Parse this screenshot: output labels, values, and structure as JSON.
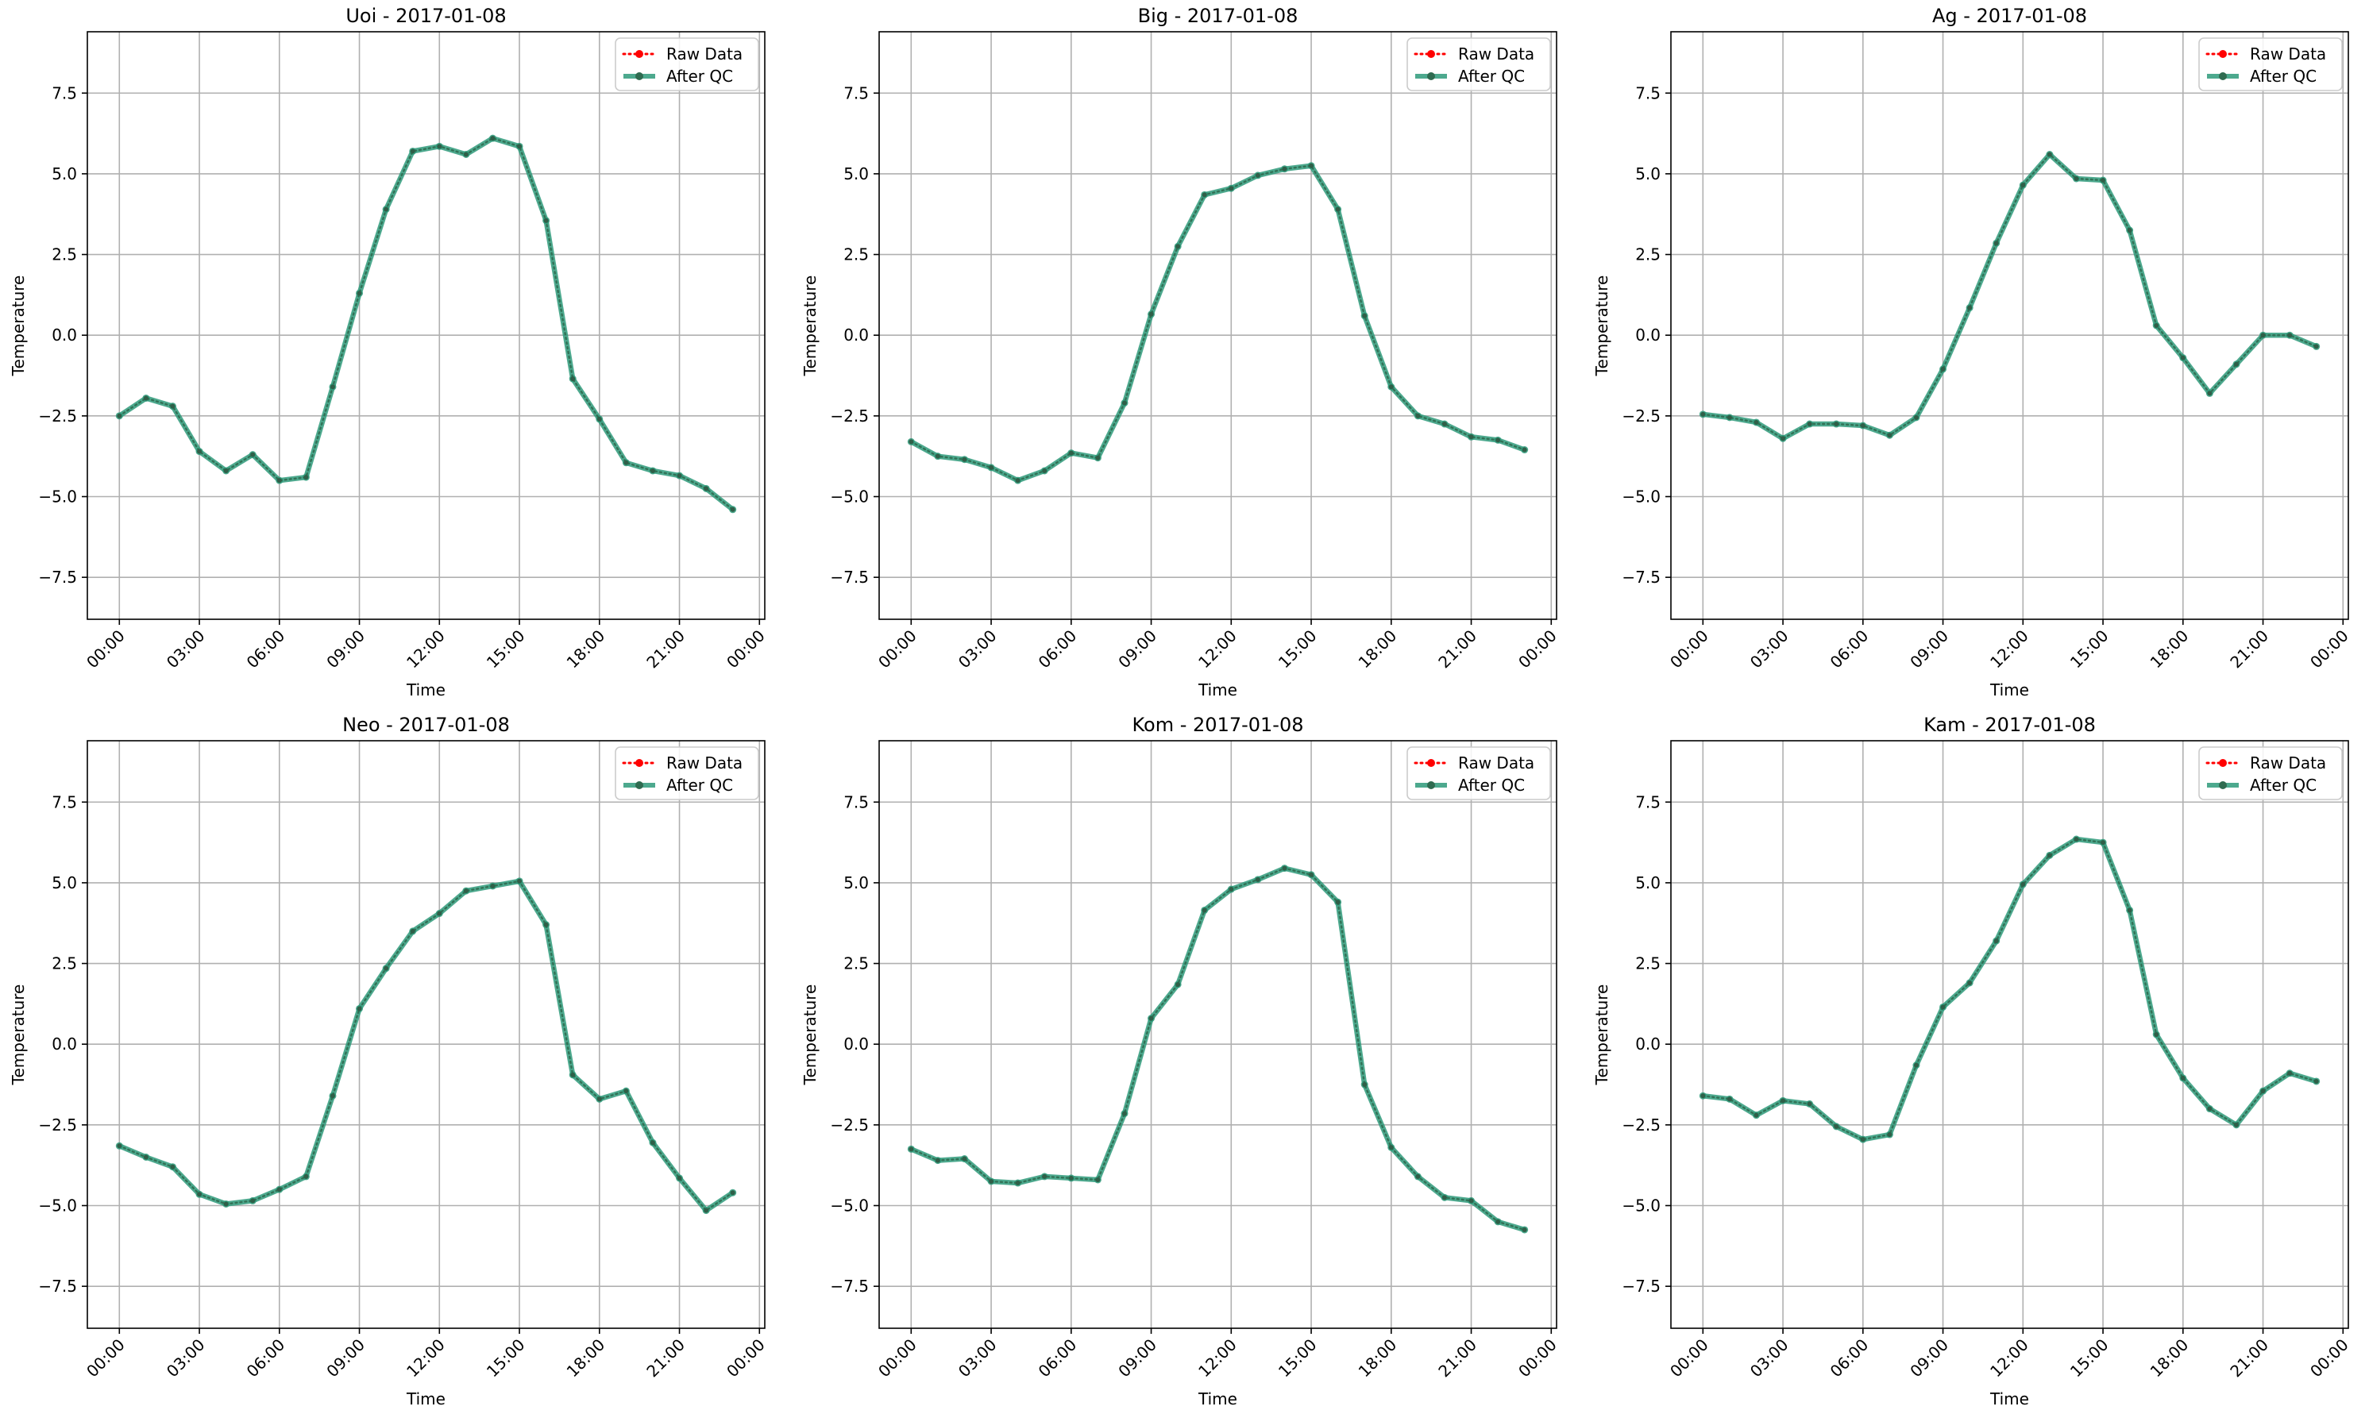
{
  "chart_data": [
    {
      "type": "line",
      "title": "Uoi - 2017-01-08",
      "xlabel": "Time",
      "ylabel": "Temperature",
      "xtick_labels": [
        "00:00",
        "03:00",
        "06:00",
        "09:00",
        "12:00",
        "15:00",
        "18:00",
        "21:00",
        "00:00"
      ],
      "ytick_labels": [
        "−7.5",
        "−5.0",
        "−2.5",
        "0.0",
        "2.5",
        "5.0",
        "7.5"
      ],
      "ylim": [
        -8.8,
        9.4
      ],
      "xlim": [
        "2017-01-07 22:48",
        "2017-01-09 00:12"
      ],
      "grid": true,
      "legend": {
        "position": "top-right",
        "entries": [
          "Raw Data",
          "After QC"
        ]
      },
      "x": [
        "00:00",
        "01:00",
        "02:00",
        "03:00",
        "04:00",
        "05:00",
        "06:00",
        "07:00",
        "08:00",
        "09:00",
        "10:00",
        "11:00",
        "12:00",
        "13:00",
        "14:00",
        "15:00",
        "16:00",
        "17:00",
        "18:00",
        "19:00",
        "20:00",
        "21:00",
        "22:00",
        "23:00"
      ],
      "series": [
        {
          "name": "Raw Data",
          "color": "#ff0000",
          "style": "dotted",
          "values": [
            -2.5,
            -1.95,
            -2.2,
            -3.6,
            -4.2,
            -3.7,
            -4.5,
            -4.4,
            -1.6,
            1.3,
            3.9,
            5.7,
            5.85,
            5.6,
            6.1,
            5.85,
            3.55,
            -1.35,
            -2.6,
            -3.95,
            -4.2,
            -4.35,
            -4.75,
            -5.4
          ]
        },
        {
          "name": "After QC",
          "color": "#2e9a7a",
          "style": "solid",
          "values": [
            -2.5,
            -1.95,
            -2.2,
            -3.6,
            -4.2,
            -3.7,
            -4.5,
            -4.4,
            -1.6,
            1.3,
            3.9,
            5.7,
            5.85,
            5.6,
            6.1,
            5.85,
            3.55,
            -1.35,
            -2.6,
            -3.95,
            -4.2,
            -4.35,
            -4.75,
            -5.4
          ]
        }
      ]
    },
    {
      "type": "line",
      "title": "Big - 2017-01-08",
      "xlabel": "Time",
      "ylabel": "Temperature",
      "xtick_labels": [
        "00:00",
        "03:00",
        "06:00",
        "09:00",
        "12:00",
        "15:00",
        "18:00",
        "21:00",
        "00:00"
      ],
      "ytick_labels": [
        "−7.5",
        "−5.0",
        "−2.5",
        "0.0",
        "2.5",
        "5.0",
        "7.5"
      ],
      "ylim": [
        -8.8,
        9.4
      ],
      "xlim": [
        "2017-01-07 22:48",
        "2017-01-09 00:12"
      ],
      "grid": true,
      "legend": {
        "position": "top-right",
        "entries": [
          "Raw Data",
          "After QC"
        ]
      },
      "x": [
        "00:00",
        "01:00",
        "02:00",
        "03:00",
        "04:00",
        "05:00",
        "06:00",
        "07:00",
        "08:00",
        "09:00",
        "10:00",
        "11:00",
        "12:00",
        "13:00",
        "14:00",
        "15:00",
        "16:00",
        "17:00",
        "18:00",
        "19:00",
        "20:00",
        "21:00",
        "22:00",
        "23:00"
      ],
      "series": [
        {
          "name": "Raw Data",
          "color": "#ff0000",
          "style": "dotted",
          "values": [
            -3.3,
            -3.75,
            -3.85,
            -4.1,
            -4.5,
            -4.2,
            -3.65,
            -3.8,
            -2.1,
            0.65,
            2.75,
            4.35,
            4.55,
            4.95,
            5.15,
            5.25,
            3.9,
            0.6,
            -1.6,
            -2.5,
            -2.75,
            -3.15,
            -3.25,
            -3.55
          ]
        },
        {
          "name": "After QC",
          "color": "#2e9a7a",
          "style": "solid",
          "values": [
            -3.3,
            -3.75,
            -3.85,
            -4.1,
            -4.5,
            -4.2,
            -3.65,
            -3.8,
            -2.1,
            0.65,
            2.75,
            4.35,
            4.55,
            4.95,
            5.15,
            5.25,
            3.9,
            0.6,
            -1.6,
            -2.5,
            -2.75,
            -3.15,
            -3.25,
            -3.55
          ]
        }
      ]
    },
    {
      "type": "line",
      "title": "Ag - 2017-01-08",
      "xlabel": "Time",
      "ylabel": "Temperature",
      "xtick_labels": [
        "00:00",
        "03:00",
        "06:00",
        "09:00",
        "12:00",
        "15:00",
        "18:00",
        "21:00",
        "00:00"
      ],
      "ytick_labels": [
        "−7.5",
        "−5.0",
        "−2.5",
        "0.0",
        "2.5",
        "5.0",
        "7.5"
      ],
      "ylim": [
        -8.8,
        9.4
      ],
      "xlim": [
        "2017-01-07 22:48",
        "2017-01-09 00:12"
      ],
      "grid": true,
      "legend": {
        "position": "top-right",
        "entries": [
          "Raw Data",
          "After QC"
        ]
      },
      "x": [
        "00:00",
        "01:00",
        "02:00",
        "03:00",
        "04:00",
        "05:00",
        "06:00",
        "07:00",
        "08:00",
        "09:00",
        "10:00",
        "11:00",
        "12:00",
        "13:00",
        "14:00",
        "15:00",
        "16:00",
        "17:00",
        "18:00",
        "19:00",
        "20:00",
        "21:00",
        "22:00",
        "23:00"
      ],
      "series": [
        {
          "name": "Raw Data",
          "color": "#ff0000",
          "style": "dotted",
          "values": [
            -2.45,
            -2.55,
            -2.7,
            -3.2,
            -2.75,
            -2.75,
            -2.8,
            -3.1,
            -2.55,
            -1.05,
            0.85,
            2.85,
            4.65,
            5.6,
            4.85,
            4.8,
            3.25,
            0.3,
            -0.7,
            -1.8,
            -0.9,
            0.0,
            0.0,
            -0.35
          ]
        },
        {
          "name": "After QC",
          "color": "#2e9a7a",
          "style": "solid",
          "values": [
            -2.45,
            -2.55,
            -2.7,
            -3.2,
            -2.75,
            -2.75,
            -2.8,
            -3.1,
            -2.55,
            -1.05,
            0.85,
            2.85,
            4.65,
            5.6,
            4.85,
            4.8,
            3.25,
            0.3,
            -0.7,
            -1.8,
            -0.9,
            0.0,
            0.0,
            -0.35
          ]
        }
      ]
    },
    {
      "type": "line",
      "title": "Neo - 2017-01-08",
      "xlabel": "Time",
      "ylabel": "Temperature",
      "xtick_labels": [
        "00:00",
        "03:00",
        "06:00",
        "09:00",
        "12:00",
        "15:00",
        "18:00",
        "21:00",
        "00:00"
      ],
      "ytick_labels": [
        "−7.5",
        "−5.0",
        "−2.5",
        "0.0",
        "2.5",
        "5.0",
        "7.5"
      ],
      "ylim": [
        -8.8,
        9.4
      ],
      "xlim": [
        "2017-01-07 22:48",
        "2017-01-09 00:12"
      ],
      "grid": true,
      "legend": {
        "position": "top-right",
        "entries": [
          "Raw Data",
          "After QC"
        ]
      },
      "x": [
        "00:00",
        "01:00",
        "02:00",
        "03:00",
        "04:00",
        "05:00",
        "06:00",
        "07:00",
        "08:00",
        "09:00",
        "10:00",
        "11:00",
        "12:00",
        "13:00",
        "14:00",
        "15:00",
        "16:00",
        "17:00",
        "18:00",
        "19:00",
        "20:00",
        "21:00",
        "22:00",
        "23:00"
      ],
      "series": [
        {
          "name": "Raw Data",
          "color": "#ff0000",
          "style": "dotted",
          "values": [
            -3.15,
            -3.5,
            -3.8,
            -4.65,
            -4.95,
            -4.85,
            -4.5,
            -4.1,
            -1.6,
            1.1,
            2.35,
            3.5,
            4.05,
            4.75,
            4.9,
            5.05,
            3.7,
            -0.95,
            -1.7,
            -1.45,
            -3.05,
            -4.15,
            -5.15,
            -4.6
          ]
        },
        {
          "name": "After QC",
          "color": "#2e9a7a",
          "style": "solid",
          "values": [
            -3.15,
            -3.5,
            -3.8,
            -4.65,
            -4.95,
            -4.85,
            -4.5,
            -4.1,
            -1.6,
            1.1,
            2.35,
            3.5,
            4.05,
            4.75,
            4.9,
            5.05,
            3.7,
            -0.95,
            -1.7,
            -1.45,
            -3.05,
            -4.15,
            -5.15,
            -4.6
          ]
        }
      ]
    },
    {
      "type": "line",
      "title": "Kom - 2017-01-08",
      "xlabel": "Time",
      "ylabel": "Temperature",
      "xtick_labels": [
        "00:00",
        "03:00",
        "06:00",
        "09:00",
        "12:00",
        "15:00",
        "18:00",
        "21:00",
        "00:00"
      ],
      "ytick_labels": [
        "−7.5",
        "−5.0",
        "−2.5",
        "0.0",
        "2.5",
        "5.0",
        "7.5"
      ],
      "ylim": [
        -8.8,
        9.4
      ],
      "xlim": [
        "2017-01-07 22:48",
        "2017-01-09 00:12"
      ],
      "grid": true,
      "legend": {
        "position": "top-right",
        "entries": [
          "Raw Data",
          "After QC"
        ]
      },
      "x": [
        "00:00",
        "01:00",
        "02:00",
        "03:00",
        "04:00",
        "05:00",
        "06:00",
        "07:00",
        "08:00",
        "09:00",
        "10:00",
        "11:00",
        "12:00",
        "13:00",
        "14:00",
        "15:00",
        "16:00",
        "17:00",
        "18:00",
        "19:00",
        "20:00",
        "21:00",
        "22:00",
        "23:00"
      ],
      "series": [
        {
          "name": "Raw Data",
          "color": "#ff0000",
          "style": "dotted",
          "values": [
            -3.25,
            -3.6,
            -3.55,
            -4.25,
            -4.3,
            -4.1,
            -4.15,
            -4.2,
            -2.15,
            0.8,
            1.85,
            4.15,
            4.8,
            5.1,
            5.45,
            5.25,
            4.4,
            -1.25,
            -3.2,
            -4.1,
            -4.75,
            -4.85,
            -5.5,
            -5.75
          ]
        },
        {
          "name": "After QC",
          "color": "#2e9a7a",
          "style": "solid",
          "values": [
            -3.25,
            -3.6,
            -3.55,
            -4.25,
            -4.3,
            -4.1,
            -4.15,
            -4.2,
            -2.15,
            0.8,
            1.85,
            4.15,
            4.8,
            5.1,
            5.45,
            5.25,
            4.4,
            -1.25,
            -3.2,
            -4.1,
            -4.75,
            -4.85,
            -5.5,
            -5.75
          ]
        }
      ]
    },
    {
      "type": "line",
      "title": "Kam - 2017-01-08",
      "xlabel": "Time",
      "ylabel": "Temperature",
      "xtick_labels": [
        "00:00",
        "03:00",
        "06:00",
        "09:00",
        "12:00",
        "15:00",
        "18:00",
        "21:00",
        "00:00"
      ],
      "ytick_labels": [
        "−7.5",
        "−5.0",
        "−2.5",
        "0.0",
        "2.5",
        "5.0",
        "7.5"
      ],
      "ylim": [
        -8.8,
        9.4
      ],
      "xlim": [
        "2017-01-07 22:48",
        "2017-01-09 00:12"
      ],
      "grid": true,
      "legend": {
        "position": "top-right",
        "entries": [
          "Raw Data",
          "After QC"
        ]
      },
      "x": [
        "00:00",
        "01:00",
        "02:00",
        "03:00",
        "04:00",
        "05:00",
        "06:00",
        "07:00",
        "08:00",
        "09:00",
        "10:00",
        "11:00",
        "12:00",
        "13:00",
        "14:00",
        "15:00",
        "16:00",
        "17:00",
        "18:00",
        "19:00",
        "20:00",
        "21:00",
        "22:00",
        "23:00"
      ],
      "series": [
        {
          "name": "Raw Data",
          "color": "#ff0000",
          "style": "dotted",
          "values": [
            -1.6,
            -1.7,
            -2.2,
            -1.75,
            -1.85,
            -2.55,
            -2.95,
            -2.8,
            -0.65,
            1.15,
            1.9,
            3.2,
            4.95,
            5.85,
            6.35,
            6.25,
            4.15,
            0.3,
            -1.05,
            -2.0,
            -2.5,
            -1.45,
            -0.9,
            -1.15
          ]
        },
        {
          "name": "After QC",
          "color": "#2e9a7a",
          "style": "solid",
          "values": [
            -1.6,
            -1.7,
            -2.2,
            -1.75,
            -1.85,
            -2.55,
            -2.95,
            -2.8,
            -0.65,
            1.15,
            1.9,
            3.2,
            4.95,
            5.85,
            6.35,
            6.25,
            4.15,
            0.3,
            -1.05,
            -2.0,
            -2.5,
            -1.45,
            -0.9,
            -1.15
          ]
        }
      ]
    }
  ]
}
